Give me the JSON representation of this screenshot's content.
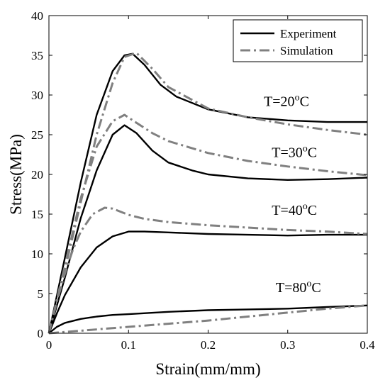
{
  "chart_data": {
    "type": "line",
    "title": "",
    "xlabel": "Strain(mm/mm)",
    "ylabel": "Stress(MPa)",
    "xlim": [
      0,
      0.4
    ],
    "ylim": [
      0,
      40
    ],
    "xticks": [
      0,
      0.1,
      0.2,
      0.3,
      0.4
    ],
    "xtick_labels": [
      "0",
      "0.1",
      "0.2",
      "0.3",
      "0.4"
    ],
    "yticks": [
      0,
      5,
      10,
      15,
      20,
      25,
      30,
      35,
      40
    ],
    "ytick_labels": [
      "0",
      "5",
      "10",
      "15",
      "20",
      "25",
      "30",
      "35",
      "40"
    ],
    "grid": false,
    "legend_position": "top-right",
    "legend": [
      {
        "label": "Experiment",
        "color": "#000000",
        "style": "solid"
      },
      {
        "label": "Simulation",
        "color": "#808080",
        "style": "dashdot"
      }
    ],
    "annotations": [
      {
        "base": "T=20",
        "sup": "o",
        "unit": "C",
        "x": 0.27,
        "y": 28.6
      },
      {
        "base": "T=30",
        "sup": "o",
        "unit": "C",
        "x": 0.28,
        "y": 22.2
      },
      {
        "base": "T=40",
        "sup": "o",
        "unit": "C",
        "x": 0.28,
        "y": 14.9
      },
      {
        "base": "T=80",
        "sup": "o",
        "unit": "C",
        "x": 0.285,
        "y": 5.2
      }
    ],
    "series": [
      {
        "group": "T=20°C",
        "kind": "Experiment",
        "color": "#000000",
        "style": "solid",
        "x": [
          0,
          0.02,
          0.04,
          0.06,
          0.08,
          0.095,
          0.105,
          0.12,
          0.14,
          0.16,
          0.2,
          0.25,
          0.3,
          0.35,
          0.4
        ],
        "y": [
          0,
          9.5,
          19,
          27.5,
          33,
          35,
          35.2,
          33.8,
          31.3,
          29.8,
          28.2,
          27.2,
          26.8,
          26.6,
          26.6
        ]
      },
      {
        "group": "T=20°C",
        "kind": "Simulation",
        "color": "#808080",
        "style": "dashdot",
        "x": [
          0,
          0.02,
          0.04,
          0.06,
          0.08,
          0.095,
          0.11,
          0.13,
          0.15,
          0.2,
          0.25,
          0.3,
          0.35,
          0.4
        ],
        "y": [
          0,
          8,
          16.5,
          25,
          31.5,
          34.8,
          35.3,
          33.3,
          31,
          28.3,
          27.2,
          26.3,
          25.6,
          25
        ]
      },
      {
        "group": "T=30°C",
        "kind": "Experiment",
        "color": "#000000",
        "style": "solid",
        "x": [
          0,
          0.02,
          0.04,
          0.06,
          0.08,
          0.095,
          0.11,
          0.13,
          0.15,
          0.18,
          0.2,
          0.25,
          0.3,
          0.35,
          0.4
        ],
        "y": [
          0,
          7,
          14.5,
          20.5,
          25,
          26.2,
          25.2,
          23,
          21.5,
          20.5,
          20,
          19.5,
          19.3,
          19.4,
          19.6
        ]
      },
      {
        "group": "T=30°C",
        "kind": "Simulation",
        "color": "#808080",
        "style": "dashdot",
        "x": [
          0,
          0.02,
          0.04,
          0.06,
          0.08,
          0.095,
          0.11,
          0.13,
          0.15,
          0.2,
          0.25,
          0.3,
          0.35,
          0.4
        ],
        "y": [
          0,
          8.5,
          17,
          23.5,
          26.7,
          27.5,
          26.5,
          25.2,
          24.2,
          22.7,
          21.7,
          21,
          20.4,
          19.9
        ]
      },
      {
        "group": "T=40°C",
        "kind": "Experiment",
        "color": "#000000",
        "style": "solid",
        "x": [
          0,
          0.01,
          0.02,
          0.04,
          0.06,
          0.08,
          0.1,
          0.12,
          0.15,
          0.2,
          0.25,
          0.3,
          0.35,
          0.4
        ],
        "y": [
          0,
          2.5,
          4.8,
          8.3,
          10.8,
          12.2,
          12.8,
          12.8,
          12.7,
          12.5,
          12.4,
          12.3,
          12.4,
          12.4
        ]
      },
      {
        "group": "T=40°C",
        "kind": "Simulation",
        "color": "#808080",
        "style": "dashdot",
        "x": [
          0,
          0.01,
          0.02,
          0.03,
          0.04,
          0.055,
          0.07,
          0.08,
          0.1,
          0.12,
          0.15,
          0.2,
          0.25,
          0.3,
          0.35,
          0.4
        ],
        "y": [
          0,
          4,
          7.5,
          10.5,
          12.8,
          15,
          15.8,
          15.7,
          14.9,
          14.4,
          14,
          13.6,
          13.3,
          13,
          12.8,
          12.5
        ]
      },
      {
        "group": "T=80°C",
        "kind": "Experiment",
        "color": "#000000",
        "style": "solid",
        "x": [
          0,
          0.01,
          0.02,
          0.04,
          0.06,
          0.08,
          0.1,
          0.15,
          0.2,
          0.25,
          0.3,
          0.35,
          0.4
        ],
        "y": [
          0,
          0.8,
          1.3,
          1.8,
          2.1,
          2.3,
          2.4,
          2.7,
          2.9,
          3,
          3.1,
          3.3,
          3.5
        ]
      },
      {
        "group": "T=80°C",
        "kind": "Simulation",
        "color": "#808080",
        "style": "dashdot",
        "x": [
          0,
          0.05,
          0.1,
          0.15,
          0.2,
          0.25,
          0.3,
          0.35,
          0.4
        ],
        "y": [
          0,
          0.4,
          0.8,
          1.2,
          1.6,
          2.1,
          2.6,
          3.1,
          3.5
        ]
      }
    ]
  }
}
